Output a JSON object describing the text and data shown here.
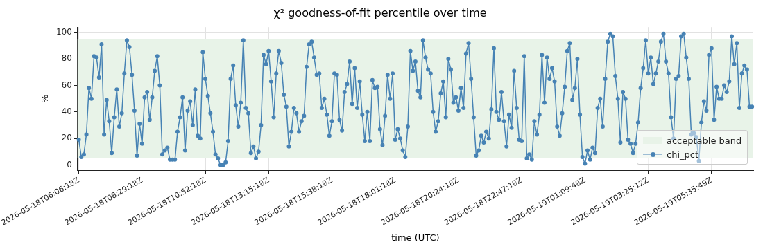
{
  "chart_data": {
    "type": "line",
    "title": "χ² goodness-of-fit percentile over time",
    "xlabel": "time (UTC)",
    "ylabel": "%",
    "categories": [
      "2026-05-18T06:06:18Z",
      null,
      null,
      null,
      null,
      null,
      null,
      null,
      null,
      null,
      null,
      null,
      null,
      null,
      null,
      null,
      null,
      null,
      null,
      null,
      null,
      null,
      null,
      null,
      null,
      "2026-05-18T08:29:18Z",
      null,
      null,
      null,
      null,
      null,
      null,
      null,
      null,
      null,
      null,
      null,
      null,
      null,
      null,
      null,
      null,
      null,
      null,
      null,
      null,
      null,
      null,
      null,
      null,
      "2026-05-18T10:52:18Z",
      null,
      null,
      null,
      null,
      null,
      null,
      null,
      null,
      null,
      null,
      null,
      null,
      null,
      null,
      null,
      null,
      null,
      null,
      null,
      null,
      null,
      null,
      null,
      null,
      "2026-05-18T13:15:18Z",
      null,
      null,
      null,
      null,
      null,
      null,
      null,
      null,
      null,
      null,
      null,
      null,
      null,
      null,
      null,
      null,
      null,
      null,
      null,
      null,
      null,
      null,
      null,
      null,
      "2026-05-18T15:38:18Z",
      null,
      null,
      null,
      null,
      null,
      null,
      null,
      null,
      null,
      null,
      null,
      null,
      null,
      null,
      null,
      null,
      null,
      null,
      null,
      null,
      null,
      null,
      null,
      null,
      "2026-05-18T18:01:18Z",
      null,
      null,
      null,
      null,
      null,
      null,
      null,
      null,
      null,
      null,
      null,
      null,
      null,
      null,
      null,
      null,
      null,
      null,
      null,
      null,
      null,
      null,
      null,
      null,
      "2026-05-18T20:24:18Z",
      null,
      null,
      null,
      null,
      null,
      null,
      null,
      null,
      null,
      null,
      null,
      null,
      null,
      null,
      null,
      null,
      null,
      null,
      null,
      null,
      null,
      null,
      null,
      null,
      "2026-05-18T22:47:18Z",
      null,
      null,
      null,
      null,
      null,
      null,
      null,
      null,
      null,
      null,
      null,
      null,
      null,
      null,
      null,
      null,
      null,
      null,
      null,
      null,
      null,
      null,
      null,
      null,
      "2026-05-19T01:09:48Z",
      null,
      null,
      null,
      null,
      null,
      null,
      null,
      null,
      null,
      null,
      null,
      null,
      null,
      null,
      null,
      null,
      null,
      null,
      null,
      null,
      null,
      null,
      null,
      null,
      "2026-05-19T03:25:12Z",
      null,
      null,
      null,
      null,
      null,
      null,
      null,
      null,
      null,
      null,
      null,
      null,
      null,
      null,
      null,
      null,
      null,
      null,
      null,
      null,
      null,
      null,
      null,
      null,
      "2026-05-19T05:35:49Z",
      null,
      null,
      null,
      null,
      null,
      null,
      null,
      null,
      null,
      null,
      null,
      null,
      null,
      null,
      null,
      null
    ],
    "series": [
      {
        "name": "chi_pct",
        "color": "#4682b4",
        "values": [
          19,
          6,
          8,
          23,
          58,
          50,
          82,
          81,
          66,
          91,
          23,
          49,
          33,
          9,
          36,
          57,
          29,
          39,
          69,
          94,
          89,
          68,
          41,
          7,
          31,
          16,
          51,
          55,
          34,
          51,
          71,
          82,
          60,
          8,
          11,
          13,
          4,
          4,
          4,
          25,
          36,
          51,
          11,
          41,
          48,
          30,
          57,
          22,
          20,
          85,
          65,
          52,
          39,
          25,
          8,
          5,
          0,
          0,
          2,
          18,
          65,
          75,
          45,
          29,
          47,
          94,
          43,
          39,
          9,
          14,
          5,
          10,
          30,
          83,
          76,
          86,
          63,
          36,
          69,
          86,
          77,
          53,
          44,
          14,
          25,
          43,
          39,
          25,
          33,
          37,
          74,
          91,
          93,
          81,
          68,
          69,
          43,
          50,
          38,
          22,
          33,
          69,
          68,
          34,
          26,
          55,
          61,
          78,
          46,
          73,
          43,
          63,
          38,
          18,
          40,
          18,
          64,
          58,
          59,
          27,
          15,
          37,
          68,
          50,
          69,
          19,
          27,
          20,
          11,
          6,
          29,
          86,
          71,
          78,
          56,
          51,
          94,
          81,
          72,
          69,
          40,
          25,
          33,
          54,
          63,
          36,
          80,
          72,
          47,
          51,
          41,
          58,
          43,
          84,
          92,
          65,
          36,
          7,
          11,
          22,
          17,
          25,
          20,
          42,
          88,
          40,
          34,
          55,
          33,
          14,
          38,
          28,
          71,
          43,
          19,
          18,
          82,
          5,
          8,
          4,
          33,
          23,
          38,
          83,
          47,
          81,
          65,
          73,
          63,
          29,
          22,
          39,
          59,
          86,
          92,
          49,
          58,
          80,
          38,
          6,
          1,
          11,
          4,
          13,
          9,
          43,
          50,
          29,
          65,
          93,
          99,
          97,
          67,
          50,
          17,
          55,
          50,
          19,
          16,
          9,
          16,
          32,
          58,
          73,
          94,
          69,
          81,
          61,
          69,
          78,
          93,
          99,
          78,
          69,
          36,
          20,
          65,
          67,
          97,
          99,
          81,
          65,
          23,
          24,
          21,
          3,
          32,
          48,
          41,
          83,
          88,
          34,
          59,
          50,
          50,
          60,
          55,
          63,
          97,
          76,
          92,
          43,
          69,
          75,
          72,
          44,
          44
        ]
      }
    ],
    "bands": [
      {
        "axis": "y",
        "from": 5,
        "to": 95,
        "label": "acceptable band",
        "color": "#e8f3e8"
      }
    ],
    "ylim": [
      -4,
      104
    ],
    "yticks": [
      0,
      20,
      40,
      60,
      80,
      100
    ],
    "grid": true,
    "legend": "bottom right",
    "marker": "circle",
    "line_style": "solid"
  }
}
